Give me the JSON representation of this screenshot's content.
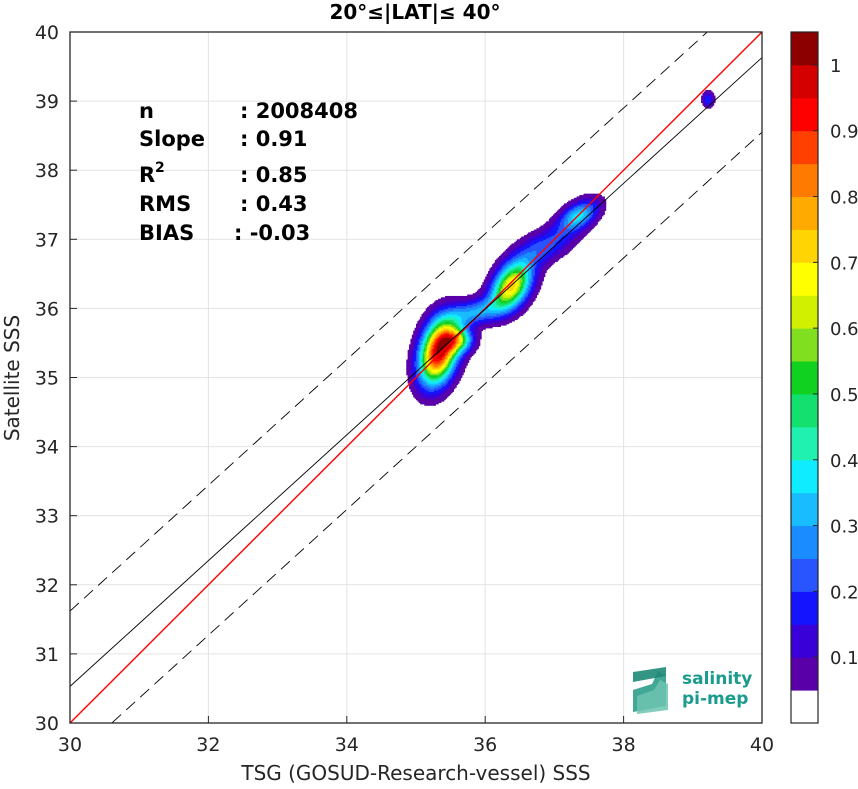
{
  "chart_data": {
    "type": "heatmap",
    "title": "20°≤|LAT|≤ 40°",
    "xlabel": "TSG (GOSUD-Research-vessel) SSS",
    "ylabel": "Satellite SSS",
    "xlim": [
      30,
      40
    ],
    "ylim": [
      30,
      40
    ],
    "xticks": [
      "30",
      "32",
      "34",
      "36",
      "38",
      "40"
    ],
    "yticks": [
      "30",
      "31",
      "32",
      "33",
      "34",
      "35",
      "36",
      "37",
      "38",
      "39",
      "40"
    ],
    "grid": true,
    "stats": [
      {
        "name": "n",
        "value": ": 2008408"
      },
      {
        "name": "Slope",
        "value": ": 0.91"
      },
      {
        "name": "R",
        "sup": "2",
        "value": ": 0.85"
      },
      {
        "name": "RMS",
        "value": ": 0.43"
      },
      {
        "name": "BIAS",
        "value": ": -0.03"
      }
    ],
    "reference_lines": [
      {
        "label": "identity",
        "slope": 1.0,
        "intercept": 0.0,
        "color": "#ff0000",
        "style": "solid"
      },
      {
        "label": "regression",
        "slope": 0.91,
        "intercept": 3.23,
        "color": "#000000",
        "style": "solid"
      },
      {
        "label": "upper",
        "slope": 0.91,
        "intercept": 4.32,
        "color": "#000000",
        "style": "dashed"
      },
      {
        "label": "lower",
        "slope": 0.91,
        "intercept": 2.15,
        "color": "#000000",
        "style": "dashed"
      }
    ],
    "density_peaks": [
      {
        "x": 35.33,
        "y": 35.38,
        "sx": 0.19,
        "sy": 0.32,
        "rho": 0.3,
        "amp": 1.0
      },
      {
        "x": 35.6,
        "y": 35.55,
        "sx": 0.15,
        "sy": 0.12,
        "rho": 0.0,
        "amp": 0.45
      },
      {
        "x": 36.38,
        "y": 36.33,
        "sx": 0.2,
        "sy": 0.24,
        "rho": 0.4,
        "amp": 0.72
      },
      {
        "x": 35.85,
        "y": 35.95,
        "sx": 0.28,
        "sy": 0.14,
        "rho": 0.4,
        "amp": 0.28
      },
      {
        "x": 36.85,
        "y": 36.9,
        "sx": 0.3,
        "sy": 0.2,
        "rho": 0.55,
        "amp": 0.22
      },
      {
        "x": 37.35,
        "y": 37.35,
        "sx": 0.2,
        "sy": 0.16,
        "rho": 0.5,
        "amp": 0.36
      },
      {
        "x": 39.22,
        "y": 39.03,
        "sx": 0.06,
        "sy": 0.08,
        "rho": 0.0,
        "amp": 0.2
      }
    ],
    "colorbar": {
      "ticks": [
        "0.1",
        "0.2",
        "0.3",
        "0.4",
        "0.5",
        "0.6",
        "0.7",
        "0.8",
        "0.9",
        "1"
      ],
      "levels": [
        0.05,
        0.1,
        0.15,
        0.2,
        0.25,
        0.3,
        0.35,
        0.4,
        0.45,
        0.5,
        0.55,
        0.6,
        0.65,
        0.7,
        0.75,
        0.8,
        0.85,
        0.9,
        0.95,
        1.0
      ],
      "colors": [
        "#ffffff",
        "#5a00a8",
        "#3a00d8",
        "#1414ff",
        "#2855ff",
        "#1a8cff",
        "#18bcff",
        "#10ecff",
        "#20f0b0",
        "#14e070",
        "#10d020",
        "#80e020",
        "#d0f000",
        "#ffff00",
        "#ffd400",
        "#ffaa00",
        "#ff7a00",
        "#ff4000",
        "#ff0000",
        "#d40000",
        "#8c0000"
      ]
    }
  },
  "logo": {
    "line1": "salinity",
    "line2": "pi-mep"
  }
}
